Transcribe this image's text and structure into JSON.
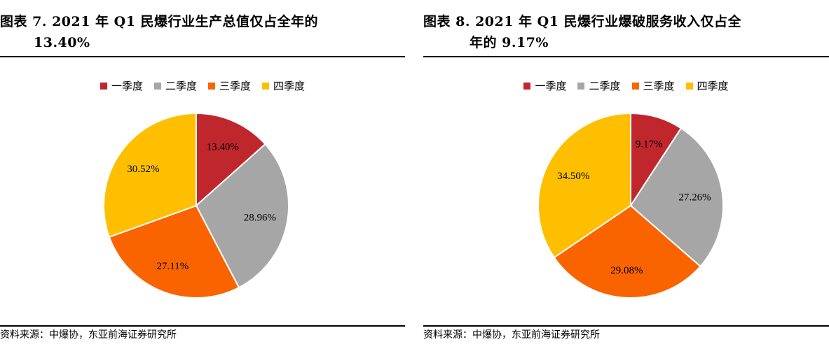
{
  "charts": [
    {
      "title_line1": "图表 7.   2021 年 Q1 民爆行业生产总值仅占全年的",
      "title_line2": "13.40%",
      "source": "资料来源：中爆协，东亚前海证券研究所"
    },
    {
      "title_line1": "图表 8.   2021 年 Q1 民爆行业爆破服务收入仅占全",
      "title_line2": "年的 9.17%",
      "source": "资料来源：中爆协，东亚前海证券研究所"
    }
  ],
  "colors": [
    "#c0272d",
    "#a6a6a6",
    "#fa6400",
    "#fdbf00"
  ],
  "chart_data": [
    {
      "type": "pie",
      "title": "2021 年 Q1 民爆行业生产总值仅占全年的 13.40%",
      "categories": [
        "一季度",
        "二季度",
        "三季度",
        "四季度"
      ],
      "values": [
        13.4,
        28.96,
        27.11,
        30.52
      ],
      "labels": [
        "13.40%",
        "28.96%",
        "27.11%",
        "30.52%"
      ],
      "legend_position": "top"
    },
    {
      "type": "pie",
      "title": "2021 年 Q1 民爆行业爆破服务收入仅占全年的 9.17%",
      "categories": [
        "一季度",
        "二季度",
        "三季度",
        "四季度"
      ],
      "values": [
        9.17,
        27.26,
        29.08,
        34.5
      ],
      "labels": [
        "9.17%",
        "27.26%",
        "29.08%",
        "34.50%"
      ],
      "legend_position": "top"
    }
  ]
}
